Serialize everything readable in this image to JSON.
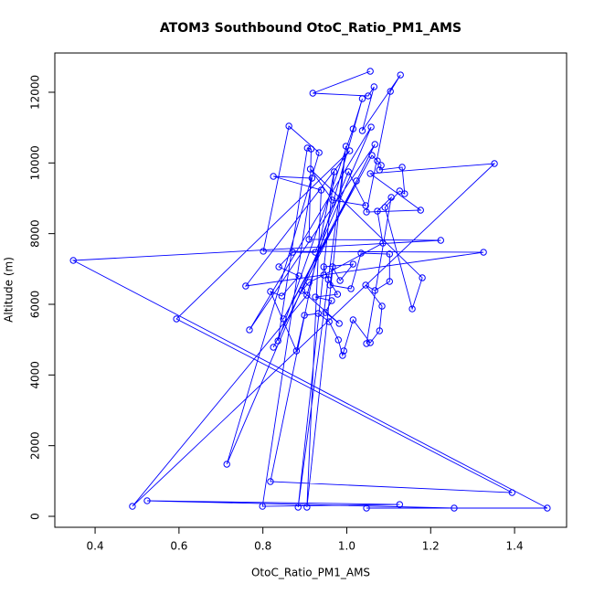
{
  "chart_data": {
    "type": "line",
    "markers": true,
    "title": "ATOM3 Southbound OtoC_Ratio_PM1_AMS",
    "xlabel": "OtoC_Ratio_PM1_AMS",
    "ylabel": "Altitude (m)",
    "color": "#0000ff",
    "xlim": [
      0.304,
      1.524
    ],
    "ylim": [
      -310,
      13111
    ],
    "xticks": [
      0.4,
      0.6,
      0.8,
      {
        "value": 1,
        "label": "1.0"
      },
      1.2,
      1.4
    ],
    "yticks": [
      0,
      2000,
      4000,
      6000,
      8000,
      10000,
      12000
    ],
    "x": [
      1.056,
      0.919,
      1.051,
      1.065,
      1.037,
      1.128,
      1.104,
      1.047,
      1.176,
      1.056,
      1.352,
      0.489,
      0.905,
      1.037,
      1.015,
      0.836,
      0.906,
      0.915,
      0.91,
      1.224,
      0.348,
      1.478,
      1.047,
      1.256,
      0.524,
      1.126,
      0.799,
      0.917,
      0.825,
      0.939,
      0.905,
      0.998,
      0.884,
      0.97,
      0.818,
      1.394,
      0.594,
      1.007,
      0.759,
      1.326,
      0.801,
      0.862,
      0.934,
      0.714,
      1.058,
      0.768,
      1.067,
      0.825,
      1.023,
      0.849,
      1.06,
      1.073,
      1.082,
      1.078,
      1.132,
      1.138,
      1.126,
      1.091,
      1.156,
      1.18,
      0.913,
      0.966,
      1.045,
      1.004,
      0.925,
      0.871,
      0.838,
      0.886,
      0.845,
      0.818,
      0.88,
      0.899,
      0.932,
      0.958,
      0.98,
      0.99,
      0.993,
      1.015,
      1.056,
      1.078,
      1.084,
      1.045,
      1.067,
      1.102,
      1.102,
      1.034,
      1.01,
      0.96,
      0.966,
      0.984,
      1.015,
      0.945,
      0.956,
      0.978,
      0.925,
      0.964,
      0.949,
      0.982,
      0.893,
      0.91,
      0.945,
      1.086,
      1.073,
      1.106,
      1.047
    ],
    "values": [
      12594,
      11973,
      11896,
      12155,
      10913,
      12490,
      12025,
      8611,
      8663,
      9698,
      9982,
      284,
      6258,
      11818,
      10964,
      4965,
      10422,
      10396,
      7836,
      7810,
      7241,
      233,
      233,
      233,
      440,
      336,
      284,
      9568,
      9620,
      9232,
      259,
      10473,
      259,
      9749,
      983,
      672,
      5586,
      10344,
      6517,
      7473,
      7500,
      11042,
      10292,
      1474,
      11016,
      5276,
      10525,
      4784,
      9491,
      5586,
      10215,
      10059,
      9930,
      9801,
      9879,
      9128,
      9206,
      8741,
      5870,
      6750,
      9827,
      8948,
      8793,
      9749,
      7473,
      7473,
      7060,
      6801,
      6232,
      6362,
      4681,
      5689,
      5741,
      5508,
      4991,
      4551,
      4681,
      5560,
      4913,
      5250,
      5948,
      6543,
      6388,
      6646,
      7422,
      7448,
      6440,
      6543,
      7060,
      6672,
      7137,
      7060,
      6698,
      6284,
      6206,
      6103,
      5767,
      5457,
      6388,
      6620,
      6827,
      7732,
      8637,
      9025,
      4888
    ]
  }
}
